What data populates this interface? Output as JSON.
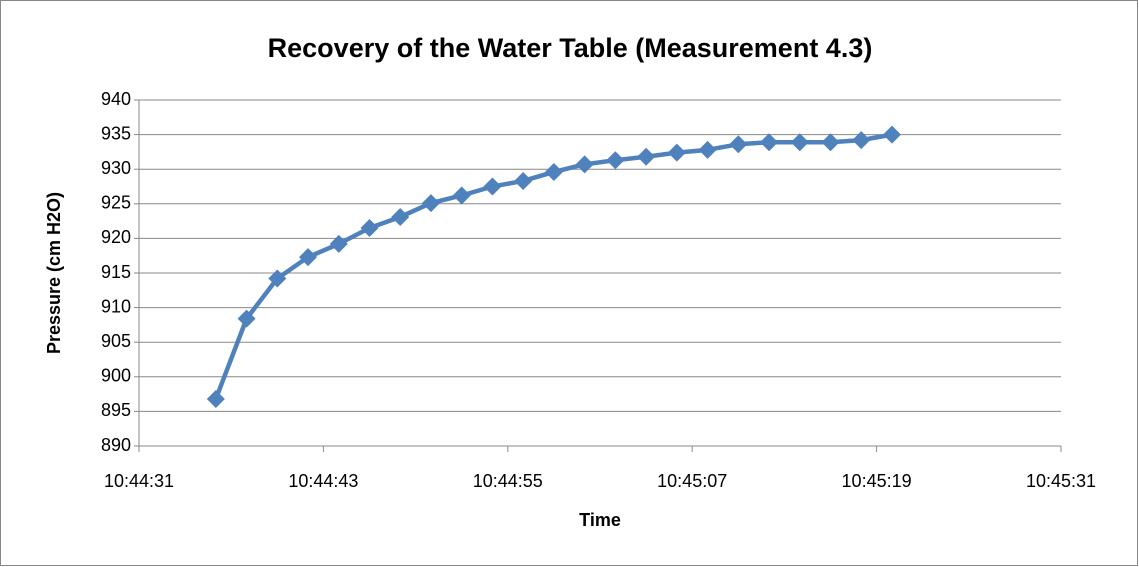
{
  "chart_data": {
    "type": "line",
    "title": "Recovery of the Water Table (Measurement 4.3)",
    "x_label": "Time",
    "y_label": "Pressure (cm H2O)",
    "x": [
      38676,
      38678,
      38680,
      38682,
      38684,
      38686,
      38688,
      38690,
      38692,
      38694,
      38696,
      38698,
      38700,
      38702,
      38704,
      38706,
      38708,
      38710,
      38712,
      38714,
      38716,
      38718,
      38720
    ],
    "series": [
      {
        "name": "Pressure",
        "color": "#4f81bd",
        "values": [
          896.8,
          908.4,
          914.2,
          917.3,
          919.2,
          921.5,
          923.1,
          925.1,
          926.2,
          927.5,
          928.3,
          929.6,
          930.7,
          931.3,
          931.8,
          932.4,
          932.8,
          933.6,
          933.9,
          933.9,
          933.9,
          934.2,
          935.0
        ]
      }
    ],
    "xlim": [
      38671,
      38731
    ],
    "xticks": [
      {
        "value": 38671,
        "label": "10:44:31"
      },
      {
        "value": 38683,
        "label": "10:44:43"
      },
      {
        "value": 38695,
        "label": "10:44:55"
      },
      {
        "value": 38707,
        "label": "10:45:07"
      },
      {
        "value": 38719,
        "label": "10:45:19"
      },
      {
        "value": 38731,
        "label": "10:45:31"
      }
    ],
    "ylim": [
      890,
      940
    ],
    "yticks": [
      890,
      895,
      900,
      905,
      910,
      915,
      920,
      925,
      930,
      935,
      940
    ],
    "grid": true
  }
}
